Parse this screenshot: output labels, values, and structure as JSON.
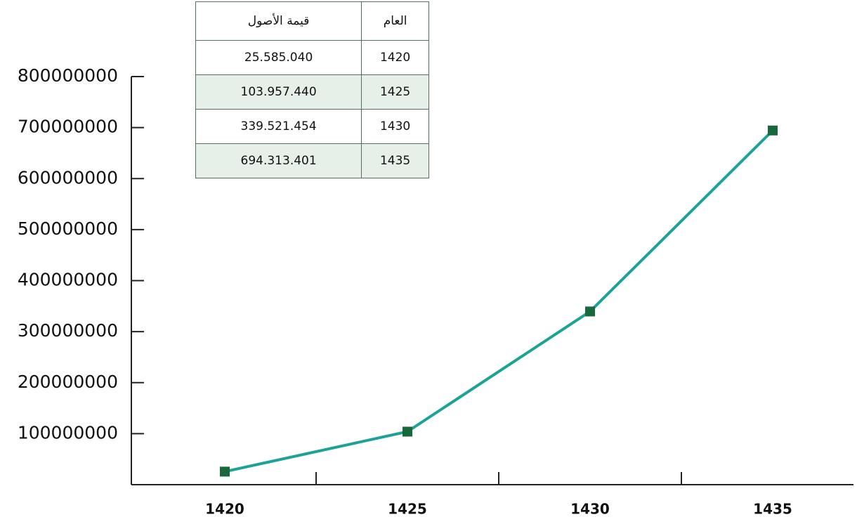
{
  "chart_data": {
    "type": "line",
    "categories": [
      "1420",
      "1425",
      "1430",
      "1435"
    ],
    "series": [
      {
        "color": "#1aa396",
        "marker_color": "#17683a",
        "values": [
          25585040,
          103957440,
          339521454,
          694313401
        ]
      }
    ],
    "ylim": [
      0,
      800000000
    ],
    "yticks": [
      100000000,
      200000000,
      300000000,
      400000000,
      500000000,
      600000000,
      700000000,
      800000000
    ],
    "table": {
      "header": [
        "قيمة الأصول",
        "العام"
      ],
      "rows": [
        [
          "25.585.040",
          "1420"
        ],
        [
          "103.957.440",
          "1425"
        ],
        [
          "339.521.454",
          "1430"
        ],
        [
          "694.313.401",
          "1435"
        ]
      ]
    }
  }
}
